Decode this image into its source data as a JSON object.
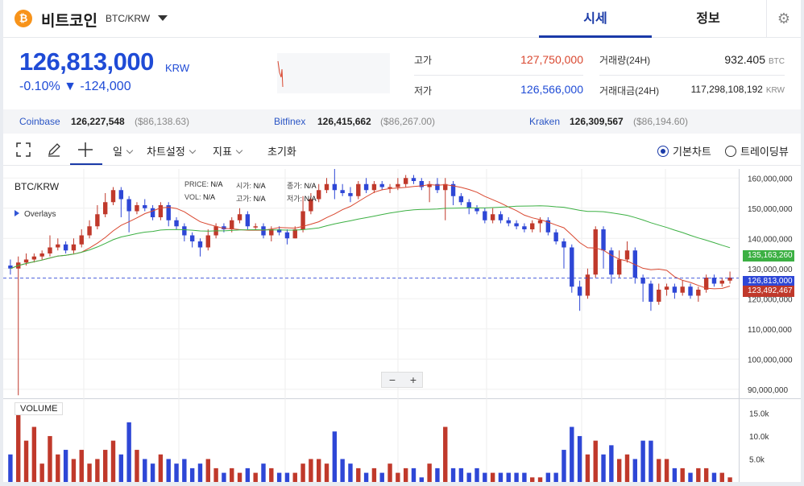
{
  "header": {
    "coin_name": "비트코인",
    "pair": "BTC/KRW",
    "tabs": [
      {
        "label": "시세",
        "active": true
      },
      {
        "label": "정보",
        "active": false
      }
    ],
    "settings_icon": "gear-icon"
  },
  "ticker": {
    "price": "126,813,000",
    "unit": "KRW",
    "change": "-0.10% ▼ -124,000",
    "high_label": "고가",
    "high_value": "127,750,000",
    "low_label": "저가",
    "low_value": "126,566,000",
    "volume_label": "거래량(24H)",
    "volume_value": "932.405",
    "volume_unit": "BTC",
    "amount_label": "거래대금(24H)",
    "amount_value": "117,298,108,192",
    "amount_unit": "KRW"
  },
  "exchanges": [
    {
      "name": "Coinbase",
      "krw": "126,227,548",
      "usd": "($86,138.63)"
    },
    {
      "name": "Bitfinex",
      "krw": "126,415,662",
      "usd": "($86,267.00)"
    },
    {
      "name": "Kraken",
      "krw": "126,309,567",
      "usd": "($86,194.60)"
    }
  ],
  "toolbar": {
    "fullscreen_icon": "expand-icon",
    "draw_icon": "pencil-icon",
    "crosshair_icon": "crosshair-icon",
    "period": "일",
    "chart_settings": "차트설정",
    "indicators": "지표",
    "reset": "초기화",
    "view_basic": "기본차트",
    "view_tradingview": "트레이딩뷰",
    "selected_view": "기본차트"
  },
  "chart": {
    "title": "BTC/KRW",
    "overlays_label": "Overlays",
    "ohlc_labels": [
      "PRICE:",
      "시가:",
      "종가:",
      "VOL:",
      "고가:",
      "저가:"
    ],
    "ohlc_na": "N/A",
    "zoom_out": "−",
    "zoom_in": "+",
    "volume_label": "VOLUME",
    "price_tags": {
      "green_ma": "135,163,260",
      "current": "126,813,000",
      "red_ma": "123,492,467"
    },
    "colors": {
      "up": "#c0392b",
      "down": "#2e47d6",
      "ma_long": "#3cb043",
      "ma_short": "#d9472f"
    }
  },
  "chart_data": {
    "type": "candlestick",
    "title": "BTC/KRW",
    "y_ticks": [
      "160,000,000",
      "150,000,000",
      "140,000,000",
      "130,000,000",
      "120,000,000",
      "110,000,000",
      "100,000,000",
      "90,000,000"
    ],
    "ylim": [
      87000000,
      163000000
    ],
    "volume_ticks": [
      "15.0k",
      "10.0k",
      "5.0k"
    ],
    "volume_max": 17000,
    "grid": true,
    "candles": [
      [
        131,
        130,
        133,
        128,
        6
      ],
      [
        130,
        132,
        134,
        88,
        15
      ],
      [
        132,
        133,
        135,
        131,
        9
      ],
      [
        133,
        134,
        135,
        132,
        12
      ],
      [
        134,
        135,
        136,
        133,
        4
      ],
      [
        135,
        137,
        141,
        134,
        10
      ],
      [
        137,
        138,
        140,
        136,
        6
      ],
      [
        138,
        136,
        139,
        135,
        7
      ],
      [
        136,
        138,
        140,
        135,
        5
      ],
      [
        138,
        141,
        143,
        137,
        7
      ],
      [
        141,
        144,
        146,
        140,
        4
      ],
      [
        144,
        148,
        151,
        143,
        5
      ],
      [
        148,
        152,
        155,
        147,
        7
      ],
      [
        152,
        156,
        157,
        151,
        9
      ],
      [
        156,
        153,
        157,
        147,
        6
      ],
      [
        153,
        149,
        154,
        142,
        13
      ],
      [
        149,
        151,
        152,
        148,
        7
      ],
      [
        151,
        150,
        153,
        149,
        5
      ],
      [
        150,
        147,
        151,
        146,
        4
      ],
      [
        147,
        151,
        152,
        146,
        6
      ],
      [
        151,
        146,
        152,
        144,
        5
      ],
      [
        146,
        144,
        147,
        143,
        4
      ],
      [
        144,
        141,
        145,
        139,
        5
      ],
      [
        141,
        139,
        142,
        137,
        3
      ],
      [
        139,
        137,
        140,
        134,
        4
      ],
      [
        137,
        141,
        143,
        136,
        5
      ],
      [
        141,
        144,
        145,
        140,
        3
      ],
      [
        144,
        143,
        145,
        142,
        2
      ],
      [
        143,
        146,
        147,
        142,
        3
      ],
      [
        146,
        148,
        150,
        145,
        2
      ],
      [
        148,
        144,
        149,
        143,
        3
      ],
      [
        144,
        144,
        145,
        143,
        2
      ],
      [
        144,
        141,
        145,
        140,
        4
      ],
      [
        141,
        143,
        144,
        139,
        3
      ],
      [
        143,
        142,
        144,
        141,
        2
      ],
      [
        142,
        140,
        143,
        138,
        2
      ],
      [
        140,
        143,
        144,
        140,
        2
      ],
      [
        143,
        149,
        154,
        142,
        4
      ],
      [
        149,
        153,
        155,
        148,
        5
      ],
      [
        153,
        156,
        158,
        152,
        5
      ],
      [
        156,
        158,
        160,
        155,
        4
      ],
      [
        158,
        156,
        163,
        153,
        11
      ],
      [
        156,
        155,
        158,
        154,
        5
      ],
      [
        155,
        154,
        157,
        152,
        4
      ],
      [
        154,
        158,
        159,
        153,
        3
      ],
      [
        158,
        156,
        160,
        155,
        2
      ],
      [
        156,
        158,
        159,
        155,
        3
      ],
      [
        158,
        157,
        159,
        156,
        2
      ],
      [
        157,
        157,
        158,
        155,
        4
      ],
      [
        157,
        158,
        160,
        156,
        2
      ],
      [
        158,
        160,
        161,
        157,
        3
      ],
      [
        160,
        159,
        161,
        158,
        3
      ],
      [
        159,
        157,
        160,
        156,
        1
      ],
      [
        157,
        158,
        159,
        152,
        4
      ],
      [
        158,
        156,
        160,
        155,
        3
      ],
      [
        156,
        158,
        160,
        146,
        12
      ],
      [
        158,
        154,
        159,
        151,
        3
      ],
      [
        154,
        152,
        155,
        151,
        3
      ],
      [
        152,
        150,
        153,
        148,
        2
      ],
      [
        150,
        149,
        151,
        148,
        3
      ],
      [
        149,
        146,
        150,
        145,
        2
      ],
      [
        146,
        148,
        150,
        145,
        2
      ],
      [
        148,
        146,
        149,
        145,
        2
      ],
      [
        146,
        145,
        147,
        144,
        2
      ],
      [
        145,
        144,
        146,
        143,
        2
      ],
      [
        144,
        143,
        145,
        142,
        2
      ],
      [
        143,
        145,
        146,
        142,
        1
      ],
      [
        145,
        146,
        147,
        142,
        1
      ],
      [
        146,
        142,
        147,
        141,
        2
      ],
      [
        142,
        139,
        143,
        138,
        2
      ],
      [
        139,
        137,
        140,
        130,
        7
      ],
      [
        137,
        124,
        138,
        122,
        12
      ],
      [
        124,
        121,
        126,
        116,
        10
      ],
      [
        121,
        128,
        130,
        120,
        6
      ],
      [
        128,
        143,
        144,
        127,
        9
      ],
      [
        143,
        136,
        144,
        130,
        6
      ],
      [
        136,
        128,
        137,
        125,
        8
      ],
      [
        128,
        133,
        136,
        127,
        5
      ],
      [
        133,
        136,
        139,
        132,
        6
      ],
      [
        136,
        127,
        137,
        125,
        5
      ],
      [
        127,
        125,
        128,
        119,
        9
      ],
      [
        125,
        119,
        126,
        116,
        9
      ],
      [
        119,
        123,
        125,
        118,
        5
      ],
      [
        123,
        124,
        125,
        121,
        5
      ],
      [
        124,
        122,
        125,
        120,
        3
      ],
      [
        122,
        124,
        126,
        121,
        3
      ],
      [
        124,
        121,
        125,
        120,
        2
      ],
      [
        121,
        123,
        124,
        119,
        3
      ],
      [
        123,
        127,
        128,
        122,
        3
      ],
      [
        127,
        125,
        128,
        124,
        2
      ],
      [
        125,
        126,
        127,
        124,
        2
      ],
      [
        126,
        127,
        129,
        125,
        1
      ]
    ]
  }
}
